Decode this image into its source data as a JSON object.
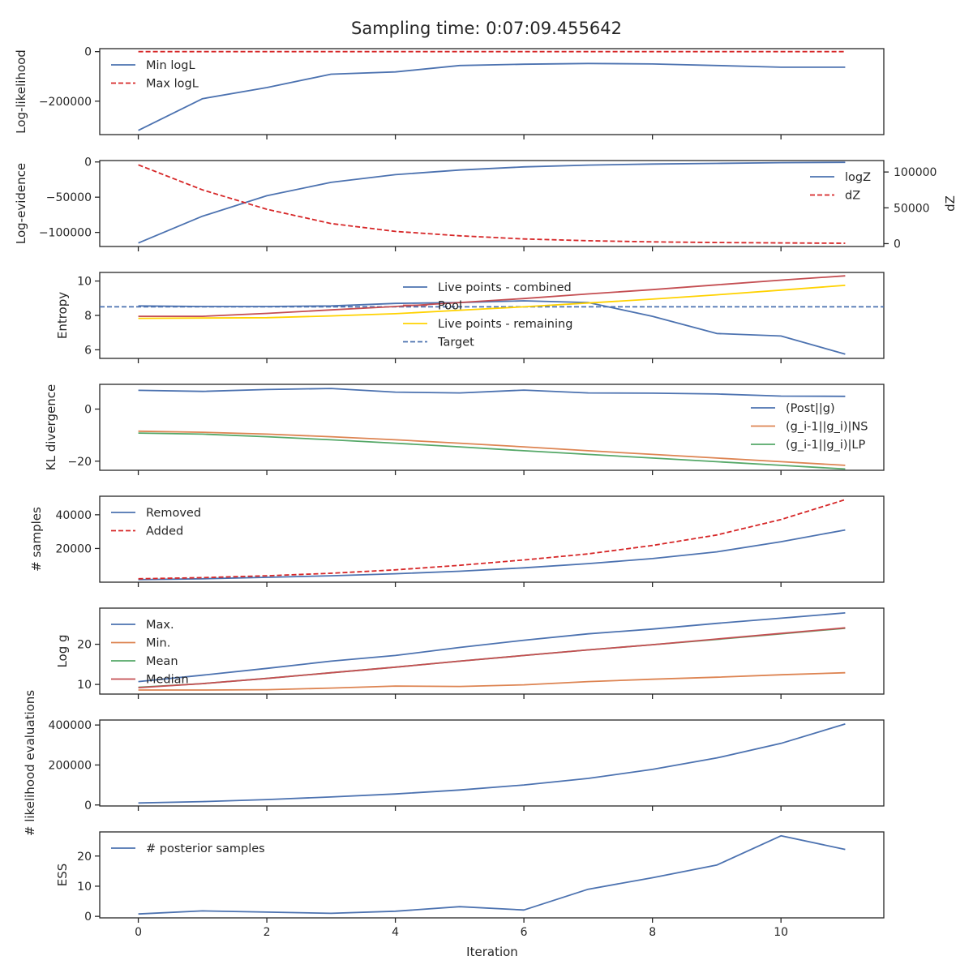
{
  "figure": {
    "title": "Sampling time: 0:07:09.455642",
    "xlabel": "Iteration"
  },
  "colors": {
    "blue": "#4c72b0",
    "orange": "#dd8452",
    "green": "#55a868",
    "red": "#c44e52",
    "dashed_red": "#d62728",
    "yellow": "#ffd200"
  },
  "chart_data": [
    {
      "type": "line",
      "ylabel": "Log-likelihood",
      "x": [
        0,
        1,
        2,
        3,
        4,
        5,
        6,
        7,
        8,
        9,
        10,
        11
      ],
      "xlim": [
        -0.6,
        11.6
      ],
      "ylim": [
        -335000,
        12000
      ],
      "yticks": [
        0,
        -200000
      ],
      "ytick_labels": [
        "0",
        "−200000"
      ],
      "legend": "top-left",
      "series": [
        {
          "name": "Min logL",
          "color": "blue",
          "dash": false,
          "values": [
            -318000,
            -190000,
            -145000,
            -91000,
            -82000,
            -56000,
            -51000,
            -48000,
            -50000,
            -56000,
            -63000,
            -63000
          ]
        },
        {
          "name": "Max logL",
          "color": "dashed_red",
          "dash": true,
          "values": [
            0,
            0,
            0,
            0,
            0,
            0,
            0,
            0,
            0,
            0,
            0,
            0
          ]
        }
      ]
    },
    {
      "type": "line",
      "ylabel": "Log-evidence",
      "ylabel_right": "dZ",
      "x": [
        0,
        1,
        2,
        3,
        4,
        5,
        6,
        7,
        8,
        9,
        10,
        11
      ],
      "xlim": [
        -0.6,
        11.6
      ],
      "ylim": [
        -120000,
        2000
      ],
      "yticks": [
        0,
        -50000,
        -100000
      ],
      "ytick_labels": [
        "0",
        "−50000",
        "−100000"
      ],
      "ylim_right": [
        -4000,
        116000
      ],
      "yticks_right": [
        100000,
        50000,
        0
      ],
      "ytick_labels_right": [
        "100000",
        "50000",
        "0"
      ],
      "legend": "upper-right",
      "series": [
        {
          "name": "logZ",
          "color": "blue",
          "dash": false,
          "axis": "left",
          "values": [
            -115000,
            -77000,
            -48000,
            -29000,
            -18000,
            -11500,
            -7000,
            -4500,
            -3000,
            -2000,
            -1000,
            -500
          ]
        },
        {
          "name": "dZ",
          "color": "dashed_red",
          "dash": true,
          "axis": "right",
          "values": [
            110000,
            75000,
            48000,
            28000,
            17000,
            11000,
            6500,
            4000,
            2500,
            1500,
            1000,
            500
          ]
        }
      ]
    },
    {
      "type": "line",
      "ylabel": "Entropy",
      "x": [
        0,
        1,
        2,
        3,
        4,
        5,
        6,
        7,
        8,
        9,
        10,
        11
      ],
      "xlim": [
        -0.6,
        11.6
      ],
      "ylim": [
        5.5,
        10.5
      ],
      "yticks": [
        10,
        8,
        6
      ],
      "ytick_labels": [
        "10",
        "8",
        "6"
      ],
      "legend": "upper-center",
      "hline": {
        "name": "Target",
        "value": 8.5,
        "color": "blue",
        "dash": true
      },
      "series": [
        {
          "name": "Live points - combined",
          "color": "blue",
          "dash": false,
          "values": [
            8.55,
            8.52,
            8.52,
            8.55,
            8.7,
            8.75,
            8.85,
            8.75,
            7.95,
            6.95,
            6.8,
            5.75
          ]
        },
        {
          "name": "Pool",
          "color": "red",
          "dash": false,
          "values": [
            7.95,
            7.95,
            8.12,
            8.32,
            8.52,
            8.75,
            8.98,
            9.25,
            9.5,
            9.78,
            10.05,
            10.3
          ]
        },
        {
          "name": "Live points - remaining",
          "color": "yellow",
          "dash": false,
          "values": [
            7.83,
            7.85,
            7.87,
            7.97,
            8.1,
            8.3,
            8.5,
            8.72,
            8.95,
            9.2,
            9.47,
            9.75
          ]
        }
      ]
    },
    {
      "type": "line",
      "ylabel": "KL divergence",
      "x": [
        0,
        1,
        2,
        3,
        4,
        5,
        6,
        7,
        8,
        9,
        10,
        11
      ],
      "xlim": [
        -0.6,
        11.6
      ],
      "ylim": [
        -23.5,
        9.5
      ],
      "yticks": [
        0,
        -20
      ],
      "ytick_labels": [
        "0",
        "−20"
      ],
      "legend": "right",
      "series": [
        {
          "name": "(Post||g)",
          "color": "blue",
          "dash": false,
          "values": [
            7.2,
            6.8,
            7.5,
            7.9,
            6.5,
            6.2,
            7.3,
            6.2,
            6.1,
            5.8,
            5.0,
            4.9
          ]
        },
        {
          "name": "(g_i-1||g_i)|NS",
          "color": "orange",
          "dash": false,
          "values": [
            -8.5,
            -8.9,
            -9.6,
            -10.6,
            -11.8,
            -13.1,
            -14.5,
            -16.0,
            -17.4,
            -18.8,
            -20.2,
            -21.6
          ]
        },
        {
          "name": "(g_i-1||g_i)|LP",
          "color": "green",
          "dash": false,
          "values": [
            -9.2,
            -9.6,
            -10.6,
            -11.8,
            -13.1,
            -14.5,
            -16.0,
            -17.4,
            -18.8,
            -20.2,
            -21.6,
            -23.0
          ]
        }
      ]
    },
    {
      "type": "line",
      "ylabel": "# samples",
      "x": [
        0,
        1,
        2,
        3,
        4,
        5,
        6,
        7,
        8,
        9,
        10,
        11
      ],
      "xlim": [
        -0.6,
        11.6
      ],
      "ylim": [
        0,
        51000
      ],
      "yticks": [
        40000,
        20000
      ],
      "ytick_labels": [
        "40000",
        "20000"
      ],
      "legend": "top-left",
      "series": [
        {
          "name": "Removed",
          "color": "blue",
          "dash": false,
          "values": [
            1500,
            2000,
            2900,
            3800,
            5000,
            6500,
            8500,
            11000,
            14000,
            18000,
            24000,
            31000
          ]
        },
        {
          "name": "Added",
          "color": "dashed_red",
          "dash": true,
          "values": [
            2000,
            2700,
            3800,
            5300,
            7300,
            10000,
            13200,
            16800,
            21800,
            28000,
            37200,
            49000
          ]
        }
      ]
    },
    {
      "type": "line",
      "ylabel": "Log g",
      "x": [
        0,
        1,
        2,
        3,
        4,
        5,
        6,
        7,
        8,
        9,
        10,
        11
      ],
      "xlim": [
        -0.6,
        11.6
      ],
      "ylim": [
        7.6,
        29.0
      ],
      "yticks": [
        20,
        10
      ],
      "ytick_labels": [
        "20",
        "10"
      ],
      "legend": "top-left",
      "series": [
        {
          "name": "Max.",
          "color": "blue",
          "dash": false,
          "values": [
            10.7,
            12.3,
            14.0,
            15.8,
            17.2,
            19.2,
            21.0,
            22.6,
            23.8,
            25.2,
            26.5,
            27.8
          ]
        },
        {
          "name": "Min.",
          "color": "orange",
          "dash": false,
          "values": [
            8.6,
            8.6,
            8.7,
            9.1,
            9.6,
            9.5,
            9.9,
            10.7,
            11.3,
            11.8,
            12.4,
            12.9
          ]
        },
        {
          "name": "Mean",
          "color": "green",
          "dash": false,
          "values": [
            9.3,
            10.2,
            11.5,
            12.9,
            14.3,
            15.8,
            17.2,
            18.6,
            19.9,
            21.2,
            22.6,
            24.0
          ]
        },
        {
          "name": "Median",
          "color": "red",
          "dash": false,
          "values": [
            9.2,
            10.2,
            11.5,
            12.9,
            14.3,
            15.8,
            17.2,
            18.6,
            19.9,
            21.3,
            22.7,
            24.1
          ]
        }
      ]
    },
    {
      "type": "line",
      "ylabel": "# likelihood evaluations",
      "x": [
        0,
        1,
        2,
        3,
        4,
        5,
        6,
        7,
        8,
        9,
        10,
        11
      ],
      "xlim": [
        -0.6,
        11.6
      ],
      "ylim": [
        -5000,
        425000
      ],
      "yticks": [
        400000,
        200000,
        0
      ],
      "ytick_labels": [
        "400000",
        "200000",
        "0"
      ],
      "legend": "none",
      "series": [
        {
          "name": "",
          "color": "blue",
          "dash": false,
          "values": [
            10000,
            17000,
            27000,
            40000,
            55000,
            75000,
            100000,
            133000,
            178000,
            235000,
            308000,
            405000
          ]
        }
      ]
    },
    {
      "type": "line",
      "ylabel": "ESS",
      "x": [
        0,
        1,
        2,
        3,
        4,
        5,
        6,
        7,
        8,
        9,
        10,
        11
      ],
      "xlim": [
        -0.6,
        11.6
      ],
      "ylim": [
        -0.5,
        28.0
      ],
      "yticks": [
        20,
        10,
        0
      ],
      "ytick_labels": [
        "20",
        "10",
        "0"
      ],
      "xticks": [
        0,
        2,
        4,
        6,
        8,
        10
      ],
      "xtick_labels": [
        "0",
        "2",
        "4",
        "6",
        "8",
        "10"
      ],
      "legend": "top-left",
      "series": [
        {
          "name": "# posterior samples",
          "color": "blue",
          "dash": false,
          "values": [
            0.8,
            1.8,
            1.4,
            1.0,
            1.7,
            3.2,
            2.1,
            9.0,
            12.8,
            17.0,
            26.7,
            22.2
          ]
        }
      ]
    }
  ]
}
